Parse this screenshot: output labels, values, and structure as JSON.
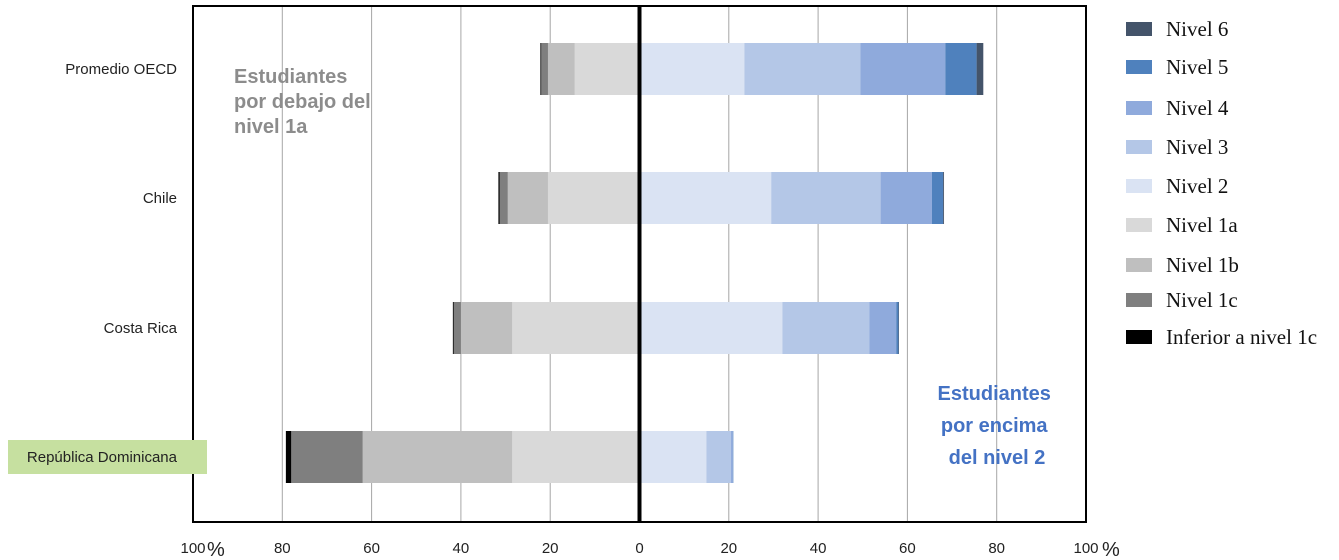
{
  "chart_data": {
    "type": "bar",
    "orientation": "horizontal-diverging",
    "categories": [
      "Promedio OECD",
      "Chile",
      "Costa Rica",
      "República Dominicana"
    ],
    "highlight_category": "República Dominicana",
    "highlight_color": "#c6e0a0",
    "xlim": [
      -100,
      100
    ],
    "x_ticks": [
      -100,
      -80,
      -60,
      -40,
      -20,
      0,
      20,
      40,
      60,
      80,
      100
    ],
    "x_tick_labels": [
      "100",
      "80",
      "60",
      "40",
      "20",
      "0",
      "20",
      "40",
      "60",
      "80",
      "100"
    ],
    "x_unit": "%",
    "grid": true,
    "legend_position": "right",
    "series": [
      {
        "name": "Inferior a nivel 1c",
        "side": "left",
        "color": "#000000",
        "values": [
          0.2,
          0.3,
          0.2,
          1.2
        ]
      },
      {
        "name": "Nivel 1c",
        "side": "left",
        "color": "#7f7f7f",
        "values": [
          1.5,
          1.8,
          1.6,
          16.0
        ]
      },
      {
        "name": "Nivel 1b",
        "side": "left",
        "color": "#bfbfbf",
        "values": [
          6.0,
          9.0,
          11.5,
          33.5
        ]
      },
      {
        "name": "Nivel 1a",
        "side": "left",
        "color": "#d9d9d9",
        "values": [
          14.5,
          20.5,
          28.5,
          28.5
        ]
      },
      {
        "name": "Nivel 2",
        "side": "right",
        "color": "#dae3f3",
        "values": [
          23.5,
          29.5,
          32.0,
          15.0
        ]
      },
      {
        "name": "Nivel 3",
        "side": "right",
        "color": "#b4c7e7",
        "values": [
          26.0,
          24.5,
          19.5,
          5.5
        ]
      },
      {
        "name": "Nivel 4",
        "side": "right",
        "color": "#8faadc",
        "values": [
          19.0,
          11.5,
          6.0,
          0.4
        ]
      },
      {
        "name": "Nivel 5",
        "side": "right",
        "color": "#4f81bd",
        "values": [
          7.0,
          2.5,
          0.5,
          0.1
        ]
      },
      {
        "name": "Nivel 6",
        "side": "right",
        "color": "#44546a",
        "values": [
          1.5,
          0.2,
          0.1,
          0.0
        ]
      }
    ],
    "legend": [
      "Nivel 6",
      "Nivel 5",
      "Nivel 4",
      "Nivel 3",
      "Nivel 2",
      "Nivel 1a",
      "Nivel 1b",
      "Nivel 1c",
      "Inferior a nivel 1c"
    ],
    "annotations": [
      {
        "id": "below",
        "lines": [
          "Estudiantes",
          "por debajo del",
          "nivel 1a"
        ],
        "color": "#8c8c8c"
      },
      {
        "id": "above",
        "lines": [
          "Estudiantes",
          "por encima",
          "del nivel 2"
        ],
        "color": "#4472c4"
      }
    ]
  }
}
